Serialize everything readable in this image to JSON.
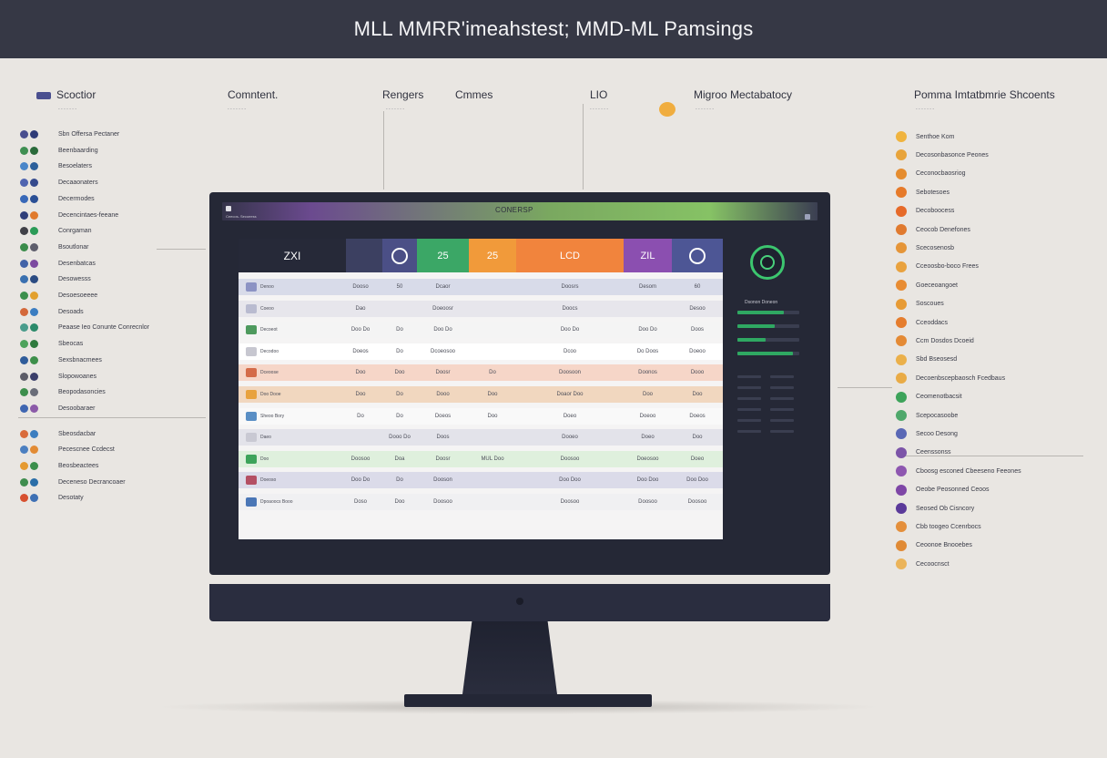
{
  "title": "MLL MMRR'imeahstest; MMD-ML Pamsings",
  "headers": {
    "col1": "Scoctior",
    "col2": "Comntent.",
    "col3a": "Rengers",
    "col3b": "Cmmes",
    "col4": "LIO",
    "col5": "Migroo Mectabatocy",
    "col6": "Pomma Imtatbmrie Shcoents"
  },
  "header_subs": [
    "- - - - - - -",
    "- - - - - - -",
    "- - - - - - -",
    "- - - - - - -",
    "- - - - - - -",
    "- - - - - - -"
  ],
  "left_list": [
    {
      "label": "Sbn Offersa Pectaner",
      "colors": [
        "#4a4f8f",
        "#2f3c78"
      ]
    },
    {
      "label": "Beenbaarding",
      "colors": [
        "#3f8f52",
        "#2a6a3a"
      ]
    },
    {
      "label": "Besoelaters",
      "colors": [
        "#4a86c9",
        "#2c5f9a"
      ]
    },
    {
      "label": "Decaaonaters",
      "colors": [
        "#4f64b0",
        "#354a8d"
      ]
    },
    {
      "label": "Decermodes",
      "colors": [
        "#3868b8",
        "#2a4f95"
      ]
    },
    {
      "label": "Decencintaes-feeane",
      "colors": [
        "#2f3f7a",
        "#e07a2d"
      ]
    },
    {
      "label": "Conrgaman",
      "colors": [
        "#404047",
        "#2b9b57"
      ]
    },
    {
      "label": "Bsoutlonar",
      "colors": [
        "#3b8c4a",
        "#5d5d6b"
      ]
    },
    {
      "label": "Desenbatcas",
      "colors": [
        "#4263a8",
        "#7c4aa0"
      ]
    },
    {
      "label": "Desowesss",
      "colors": [
        "#3a70b0",
        "#2b4b82"
      ]
    },
    {
      "label": "Desoesoeeee",
      "colors": [
        "#3c8f4c",
        "#e2a02e"
      ]
    },
    {
      "label": "Desoads",
      "colors": [
        "#d4683a",
        "#3b7dc1"
      ]
    },
    {
      "label": "Peaase Ieo Conunte Conrecnlor",
      "colors": [
        "#4a9c8c",
        "#2b8a6a"
      ]
    },
    {
      "label": "Sbeocas",
      "colors": [
        "#4ea35c",
        "#2f7a3d"
      ]
    },
    {
      "label": "Sexsbnacmees",
      "colors": [
        "#2f5c9a",
        "#3d8f4a"
      ]
    },
    {
      "label": "Slopowoanes",
      "colors": [
        "#5d5d68",
        "#3b3f6a"
      ]
    },
    {
      "label": "Beopodasoncies",
      "colors": [
        "#3e8f4d",
        "#6a6d79"
      ]
    },
    {
      "label": "Desoobaraer",
      "colors": [
        "#3f66b1",
        "#8b5aa8"
      ]
    },
    {
      "label": "Sbeosdacbar",
      "colors": [
        "#d96b3b",
        "#3c7ec0"
      ]
    },
    {
      "label": "Pecescnee Ccdecst",
      "colors": [
        "#4b7fc0",
        "#e28b34"
      ]
    },
    {
      "label": "Beosbeactees",
      "colors": [
        "#e59a31",
        "#3c8f4c"
      ]
    },
    {
      "label": "Deceneso Decrancoaer",
      "colors": [
        "#3f8d4e",
        "#2b6ea8"
      ]
    },
    {
      "label": "Desotaty",
      "colors": [
        "#d7502f",
        "#3e70b4"
      ]
    }
  ],
  "right_list": [
    {
      "label": "Senthoe Kom",
      "color": "#f0b43f"
    },
    {
      "label": "Decosonbasonce Peones",
      "color": "#e8a43b"
    },
    {
      "label": "Ceconocbaosriog",
      "color": "#e58c2f"
    },
    {
      "label": "Sebotesoes",
      "color": "#e67a2a"
    },
    {
      "label": "Decoboocess",
      "color": "#e66a29"
    },
    {
      "label": "Ceocob Denefones",
      "color": "#e07a2f"
    },
    {
      "label": "Scecosenosb",
      "color": "#e59538"
    },
    {
      "label": "Cceoosbo-boco Frees",
      "color": "#e9a23e"
    },
    {
      "label": "Goeceoangoet",
      "color": "#e88c33"
    },
    {
      "label": "Soscoues",
      "color": "#e79b35"
    },
    {
      "label": "Cceoddacs",
      "color": "#e57d2e"
    },
    {
      "label": "Ccm Dosdos Dcoeid",
      "color": "#e48a35"
    },
    {
      "label": "Sbd Bseosesd",
      "color": "#ebb04a"
    },
    {
      "label": "Decoenbscepbaosch Fcedbaus",
      "color": "#e9ab46"
    },
    {
      "label": "Ceomenotbacsit",
      "color": "#3da35a"
    },
    {
      "label": "Scepocasoobe",
      "color": "#4fa86b"
    },
    {
      "label": "Secoo Desong",
      "color": "#5a68b5"
    },
    {
      "label": "Ceenssonss",
      "color": "#7c54a8"
    },
    {
      "label": "Cboosg esconed Cbeeseno Feeones",
      "color": "#8e57b0"
    },
    {
      "label": "Oeobe Peosonned Ceoos",
      "color": "#7e46a6"
    },
    {
      "label": "Seosed Ob Cisncory",
      "color": "#5b3a9a"
    },
    {
      "label": "Cbb toogeo Ccenrbocs",
      "color": "#e48f3b"
    },
    {
      "label": "Ceoonoe Bnooebes",
      "color": "#e08a35"
    },
    {
      "label": "Cecoocnsct",
      "color": "#ebb45a"
    }
  ],
  "app": {
    "title": "CONERSP",
    "tb_text": "Ceecos- Secoeess"
  },
  "table": {
    "corner": "ZXI",
    "columns": [
      {
        "label": "",
        "color": "#3c4061"
      },
      {
        "label": "",
        "color": "#4b4f86",
        "icon": true
      },
      {
        "label": "25",
        "color": "#3ba766"
      },
      {
        "label": "25",
        "color": "#f19a3a"
      },
      {
        "label": "LCD",
        "color": "#f1843d"
      },
      {
        "label": "ZIL",
        "color": "#8b4fb0"
      },
      {
        "label": "",
        "color": "#4d5695",
        "icon": true
      }
    ],
    "rows": [
      {
        "label": "Denoo",
        "bg": "#d8dbe9",
        "cells": [
          "Dooso",
          "50",
          "Dcaor",
          "",
          "Doosrs",
          "Desom",
          "60"
        ]
      },
      {
        "label": "Coeoo",
        "bg": "#e7e6ec",
        "cells": [
          "Dao",
          "",
          "Doeoosr",
          "",
          "Doocs",
          "",
          "Desoo"
        ]
      },
      {
        "label": "Decoeot",
        "bg": "#f4f4f4",
        "cells": [
          "Doo Do",
          "Do",
          "Doo Do",
          "",
          "Doo Do",
          "Doo Do",
          "Doos"
        ]
      },
      {
        "label": "Decodoo",
        "bg": "#ffffff",
        "cells": [
          "Doeos",
          "Do",
          "Dcoeosoo",
          "",
          "Dcoo",
          "Do Doos",
          "Doeoo"
        ]
      },
      {
        "label": "Dceoose",
        "bg": "#f6d6c8",
        "cells": [
          "Doo",
          "Doo",
          "Doosr",
          "Do",
          "Doosoon",
          "Doonos",
          "Dooo"
        ]
      },
      {
        "label": "Doo Dooe",
        "bg": "#f1d7bf",
        "cells": [
          "Doo",
          "Do",
          "Dooo",
          "Doo",
          "Doaor Doo",
          "Doo",
          "Doo"
        ]
      },
      {
        "label": "Sheoo Bory",
        "bg": "#f9f9f9",
        "cells": [
          "Do",
          "Do",
          "Doeos",
          "Doo",
          "Doeo",
          "Doeoo",
          "Doeos"
        ]
      },
      {
        "label": "Daeo",
        "bg": "#e3e3ea",
        "cells": [
          "",
          "Dooo Do",
          "Doos",
          "",
          "Dooeo",
          "Doeo",
          "Doo"
        ]
      },
      {
        "label": "Doo",
        "bg": "#dff0dd",
        "cells": [
          "Doosoo",
          "Doa",
          "Doosr",
          "MUL Doo",
          "Doosoo",
          "Doeosoo",
          "Doeo"
        ]
      },
      {
        "label": "Doeoso",
        "bg": "#dbdbe9",
        "cells": [
          "Doo Do",
          "Do",
          "Dooson",
          "",
          "Doo Doo",
          "Doo Doo",
          "Doo Doo"
        ]
      },
      {
        "label": "Dpoaoocs Booo",
        "bg": "#f0f0f2",
        "cells": [
          "Doso",
          "Doo",
          "Doosoo",
          "",
          "Doosoo",
          "Doosoo",
          "Doosoo"
        ]
      }
    ]
  },
  "panel": {
    "label": "Dsonon Doneon",
    "bars": [
      0.75,
      0.6,
      0.45,
      0.9
    ]
  }
}
